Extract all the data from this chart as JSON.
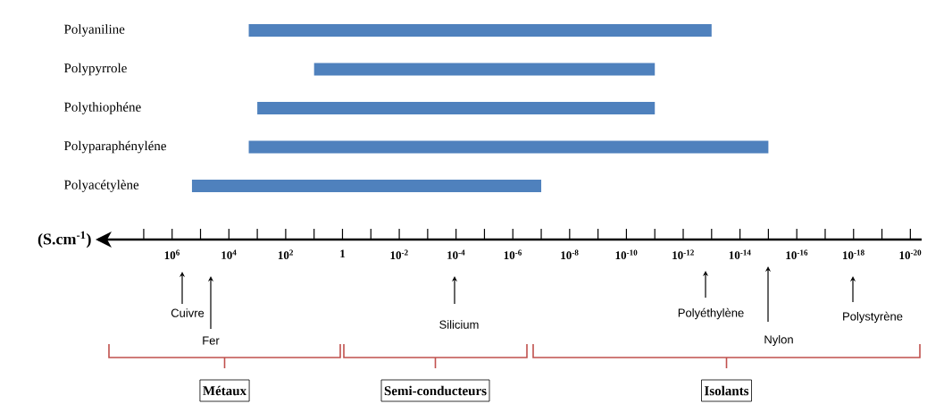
{
  "chart_data": {
    "type": "bar",
    "orientation": "horizontal",
    "log": "x",
    "xlabel": "(S.cm$^{-1}$)",
    "categories": [
      "Polyaniline",
      "Polypyrrole",
      "Polythiophéne",
      "Polyparaphényléne",
      "Polyacétylène"
    ],
    "base": [
      1e-13,
      1e-11,
      1e-11,
      1e-15,
      1e-07
    ],
    "values": [
      2000,
      10,
      1000,
      2000,
      200000
    ],
    "color": "#4f81bd",
    "xlim": [
      400000000.0,
      4e-21
    ],
    "xticks": [
      {
        "value": 10000000.0,
        "label": null
      },
      {
        "value": 1000000.0,
        "label": "10$^{6}$"
      },
      {
        "value": 100000.0,
        "label": null
      },
      {
        "value": 10000.0,
        "label": "10$^{4}$"
      },
      {
        "value": 1000.0,
        "label": null
      },
      {
        "value": 100.0,
        "label": "10$^{2}$"
      },
      {
        "value": 10.0,
        "label": null
      },
      1,
      {
        "value": 0.1,
        "label": null
      },
      {
        "value": 0.01,
        "label": "10$^{-2}$"
      },
      {
        "value": 0.001,
        "label": null
      },
      {
        "value": 0.0001,
        "label": "10$^{-4}$"
      },
      {
        "value": 1e-05,
        "label": null
      },
      {
        "value": 1e-06,
        "label": "10$^{-6}$"
      },
      {
        "value": 1e-07,
        "label": null
      },
      {
        "value": 1e-08,
        "label": "10$^{-8}$"
      },
      {
        "value": 1e-09,
        "label": null
      },
      {
        "value": 1e-10,
        "label": "10$^{-10}$"
      },
      {
        "value": 1e-11,
        "label": null
      },
      {
        "value": 1e-12,
        "label": "10$^{-12}$"
      },
      {
        "value": 1e-13,
        "label": null
      },
      {
        "value": 1e-14,
        "label": "10$^{-14}$"
      },
      {
        "value": 1e-15,
        "label": null
      },
      {
        "value": 1e-16,
        "label": "10$^{-16}$"
      },
      {
        "value": 1e-17,
        "label": null
      },
      {
        "value": 1e-18,
        "label": "10$^{-18}$"
      },
      {
        "value": 1e-19,
        "label": null
      },
      {
        "value": 1e-20,
        "label": "10$^{-20}$"
      }
    ],
    "annotations": [
      "Cuivre",
      "Fer",
      "Silicium",
      "Polyéthylène",
      "Nylon",
      "Polystyrène",
      "Métaux",
      "Semi-conducteurs",
      "Isolants"
    ]
  }
}
